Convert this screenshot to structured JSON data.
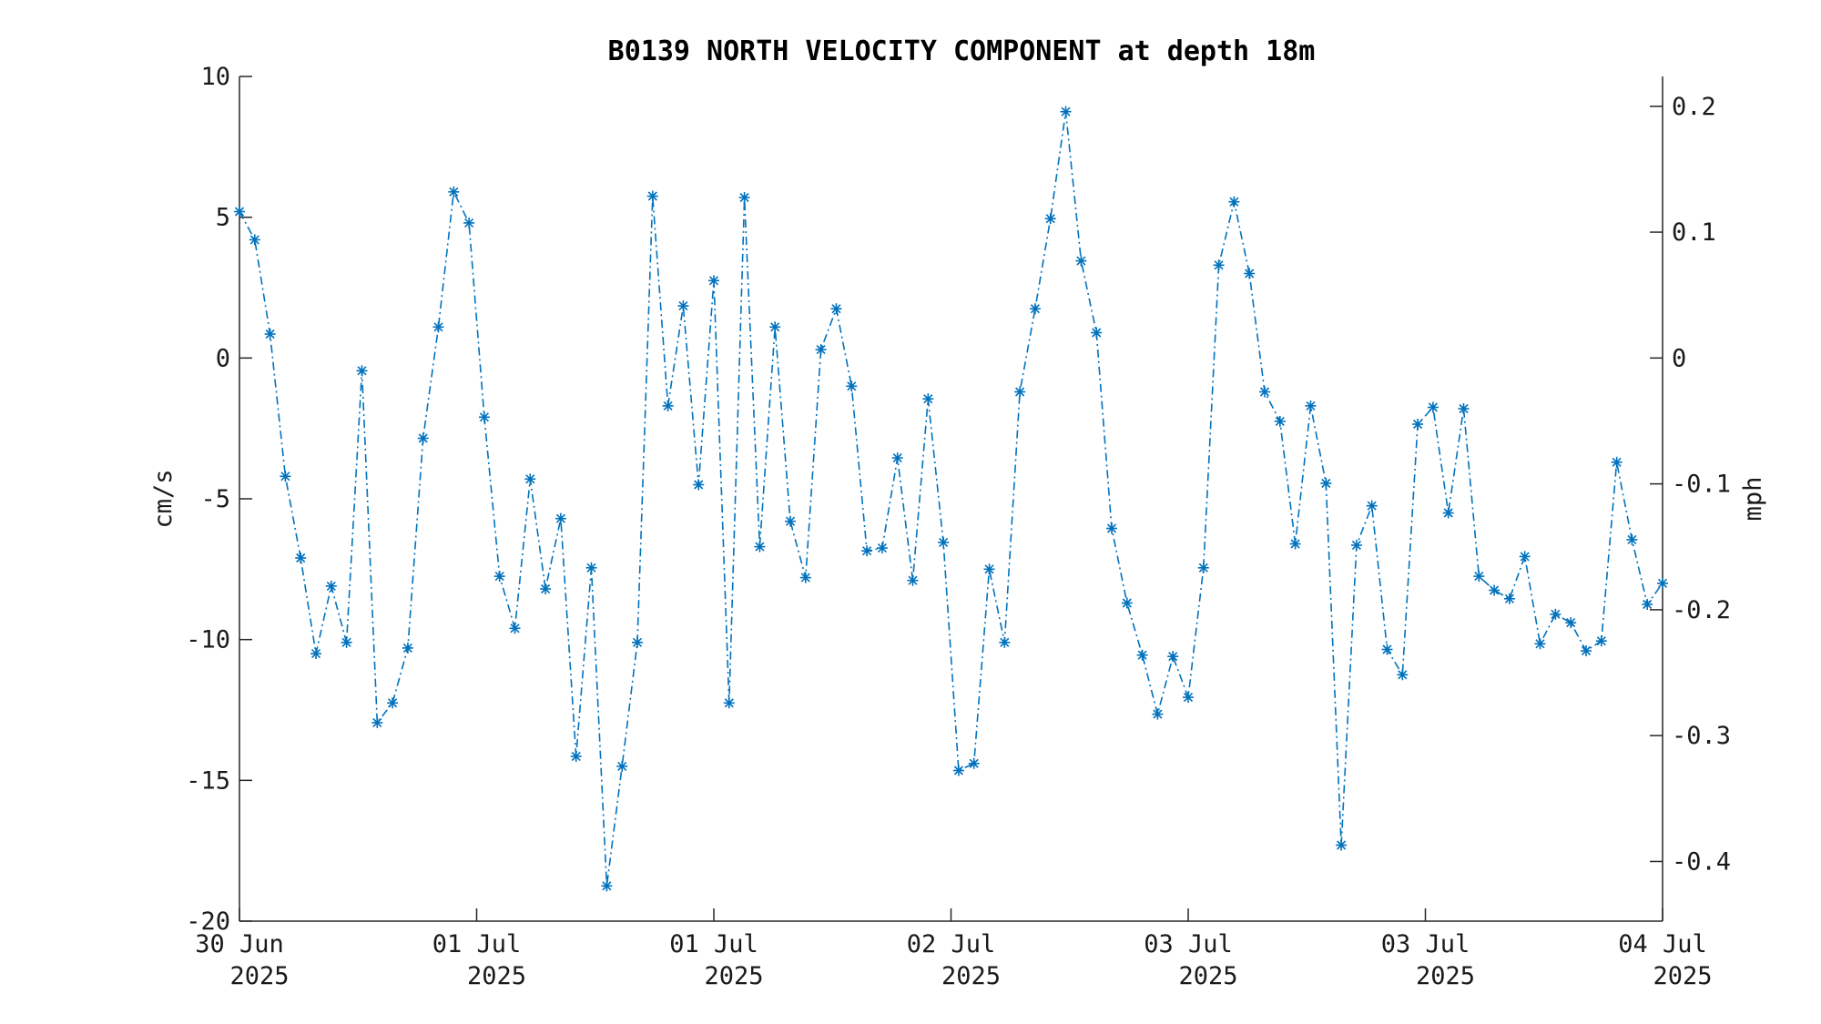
{
  "chart_data": {
    "type": "line",
    "title": "B0139 NORTH VELOCITY COMPONENT at depth 18m",
    "ylabel": "cm/s",
    "y2label": "mph",
    "ylim": [
      -20,
      10
    ],
    "y2lim": [
      -0.4474,
      0.2237
    ],
    "yticks": [
      "10",
      "5",
      "0",
      "-5",
      "-10",
      "-15",
      "-20"
    ],
    "y2ticks": [
      "0.2",
      "0.1",
      "0",
      "-0.1",
      "-0.2",
      "-0.3",
      "-0.4"
    ],
    "xticks": [
      {
        "line1": "30 Jun",
        "line2": "2025"
      },
      {
        "line1": "01 Jul",
        "line2": "2025"
      },
      {
        "line1": "01 Jul",
        "line2": "2025"
      },
      {
        "line1": "02 Jul",
        "line2": "2025"
      },
      {
        "line1": "03 Jul",
        "line2": "2025"
      },
      {
        "line1": "03 Jul",
        "line2": "2025"
      },
      {
        "line1": "04 Jul",
        "line2": "2025"
      }
    ],
    "grid": false,
    "series": [
      {
        "color": "#0072bd",
        "marker": "asterisk",
        "line_style": "dash-dot",
        "values": [
          5.2,
          4.2,
          0.85,
          -4.2,
          -7.1,
          -10.5,
          -8.1,
          -10.1,
          -0.45,
          -12.95,
          -12.25,
          -10.3,
          -2.85,
          1.1,
          5.9,
          4.8,
          -2.1,
          -7.75,
          -9.6,
          -4.3,
          -8.2,
          -5.7,
          -14.15,
          -7.45,
          -18.75,
          -14.5,
          -10.1,
          5.75,
          -1.7,
          1.85,
          -4.5,
          2.75,
          -12.25,
          5.7,
          -6.7,
          1.1,
          -5.8,
          -7.8,
          0.3,
          1.75,
          -1.0,
          -6.85,
          -6.75,
          -3.55,
          -7.9,
          -1.45,
          -6.55,
          -14.65,
          -14.4,
          -7.5,
          -10.1,
          -1.2,
          1.75,
          4.95,
          8.75,
          3.45,
          0.9,
          -6.05,
          -8.7,
          -10.55,
          -12.65,
          -10.6,
          -12.05,
          -7.45,
          3.3,
          5.55,
          3.0,
          -1.2,
          -2.25,
          -6.6,
          -1.7,
          -4.45,
          -17.3,
          -6.65,
          -5.25,
          -10.35,
          -11.25,
          -2.35,
          -1.75,
          -5.5,
          -1.8,
          -7.75,
          -8.25,
          -8.55,
          -7.05,
          -10.15,
          -9.1,
          -9.4,
          -10.4,
          -10.05,
          -3.7,
          -6.45,
          -8.75,
          -8.0
        ]
      }
    ]
  }
}
